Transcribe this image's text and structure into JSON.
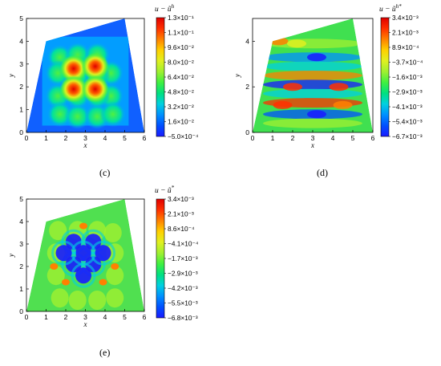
{
  "captions": {
    "c": "(c)",
    "d": "(d)",
    "e": "(e)"
  },
  "colormap": [
    "#1a1aff",
    "#0050ff",
    "#0090ff",
    "#00d0e0",
    "#00e080",
    "#40f040",
    "#a0f030",
    "#e0f020",
    "#ffd000",
    "#ff8000",
    "#ff3000",
    "#e00000"
  ],
  "chart_data": [
    {
      "id": "c",
      "type": "heatmap",
      "xlabel": "x",
      "ylabel": "y",
      "xlim": [
        0,
        6
      ],
      "ylim": [
        0,
        5
      ],
      "xticks": [
        "0",
        "1",
        "2",
        "3",
        "4",
        "5",
        "6"
      ],
      "yticks": [
        "0",
        "1",
        "2",
        "3",
        "4",
        "5"
      ],
      "domain_polygon": [
        [
          0,
          0
        ],
        [
          6,
          0
        ],
        [
          5,
          5
        ],
        [
          1,
          4
        ]
      ],
      "colorbar_title": "u − ũ",
      "colorbar_superscript": "h",
      "colorbar_ticks": [
        "1.3×10⁻¹",
        "1.1×10⁻¹",
        "9.6×10⁻²",
        "8.0×10⁻²",
        "6.4×10⁻²",
        "4.8×10⁻²",
        "3.2×10⁻²",
        "1.6×10⁻²",
        "−5.0×10⁻⁴"
      ],
      "colorbar_range": [
        -0.0005,
        0.13
      ],
      "extrema": {
        "max": 0.13,
        "min": -0.0005
      }
    },
    {
      "id": "d",
      "type": "heatmap",
      "xlabel": "x",
      "ylabel": "y",
      "xlim": [
        0,
        6
      ],
      "ylim": [
        0,
        5
      ],
      "xticks": [
        "0",
        "1",
        "2",
        "3",
        "4",
        "5",
        "6"
      ],
      "yticks": [
        "0",
        "2",
        "4"
      ],
      "domain_polygon": [
        [
          0,
          0
        ],
        [
          6,
          0
        ],
        [
          5,
          5
        ],
        [
          1,
          4
        ]
      ],
      "colorbar_title": "u − ũ",
      "colorbar_superscript": "h*",
      "colorbar_ticks": [
        "3.4×10⁻³",
        "2.1×10⁻³",
        "8.9×10⁻⁴",
        "−3.7×10⁻⁴",
        "−1.6×10⁻³",
        "−2.9×10⁻³",
        "−4.1×10⁻³",
        "−5.4×10⁻³",
        "−6.7×10⁻³"
      ],
      "colorbar_range": [
        -0.0067,
        0.0034
      ],
      "extrema": {
        "max": 0.0034,
        "min": -0.0067
      }
    },
    {
      "id": "e",
      "type": "heatmap",
      "xlabel": "x",
      "ylabel": "y",
      "xlim": [
        0,
        6
      ],
      "ylim": [
        0,
        5
      ],
      "xticks": [
        "0",
        "1",
        "2",
        "3",
        "4",
        "5",
        "6"
      ],
      "yticks": [
        "0",
        "1",
        "2",
        "3",
        "4",
        "5"
      ],
      "domain_polygon": [
        [
          0,
          0
        ],
        [
          6,
          0
        ],
        [
          5,
          5
        ],
        [
          1,
          4
        ]
      ],
      "colorbar_title": "u − ũ",
      "colorbar_superscript": "*",
      "colorbar_ticks": [
        "3.4×10⁻³",
        "2.1×10⁻³",
        "8.6×10⁻⁴",
        "−4.1×10⁻⁴",
        "−1.7×10⁻³",
        "−2.9×10⁻³",
        "−4.2×10⁻³",
        "−5.5×10⁻³",
        "−6.8×10⁻³"
      ],
      "colorbar_range": [
        -0.0068,
        0.0034
      ],
      "extrema": {
        "max": 0.0034,
        "min": -0.0068
      }
    }
  ]
}
